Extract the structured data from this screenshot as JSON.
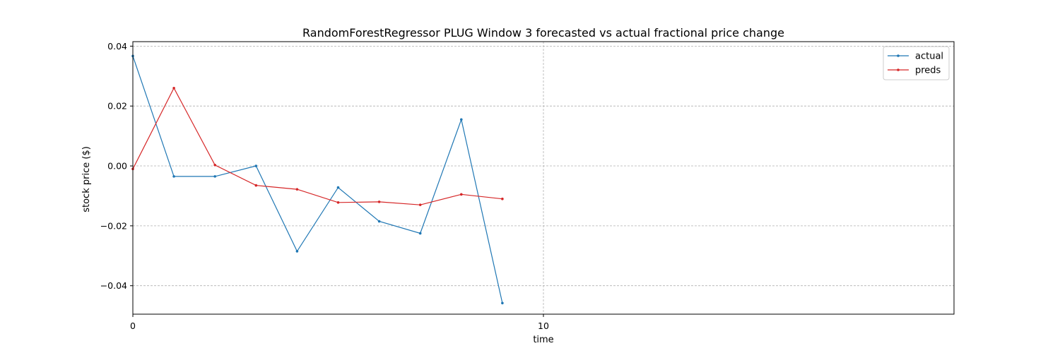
{
  "chart_data": {
    "type": "line",
    "title": "RandomForestRegressor PLUG Window 3 forecasted vs actual fractional price change",
    "xlabel": "time",
    "ylabel": "stock price ($)",
    "xlim": [
      0,
      20
    ],
    "ylim": [
      -0.0495,
      0.0415
    ],
    "xticks": [
      0,
      10
    ],
    "xtick_labels": [
      "0",
      "10"
    ],
    "yticks": [
      0.04,
      0.02,
      0.0,
      -0.02,
      -0.04
    ],
    "ytick_labels": [
      "0.04",
      "0.02",
      "0.00",
      "−0.02",
      "−0.04"
    ],
    "grid": true,
    "legend_position": "top-right",
    "series": [
      {
        "name": "actual",
        "color": "#1f77b4",
        "x": [
          0,
          1,
          2,
          3,
          4,
          5,
          6,
          7,
          8,
          9
        ],
        "values": [
          0.0367,
          -0.0035,
          -0.0035,
          0.0,
          -0.0285,
          -0.0072,
          -0.0185,
          -0.0225,
          0.0155,
          -0.0458
        ]
      },
      {
        "name": "preds",
        "color": "#d62728",
        "x": [
          0,
          1,
          2,
          3,
          4,
          5,
          6,
          7,
          8,
          9
        ],
        "values": [
          -0.001,
          0.026,
          0.0003,
          -0.0065,
          -0.0078,
          -0.0122,
          -0.012,
          -0.013,
          -0.0095,
          -0.011
        ]
      }
    ]
  }
}
